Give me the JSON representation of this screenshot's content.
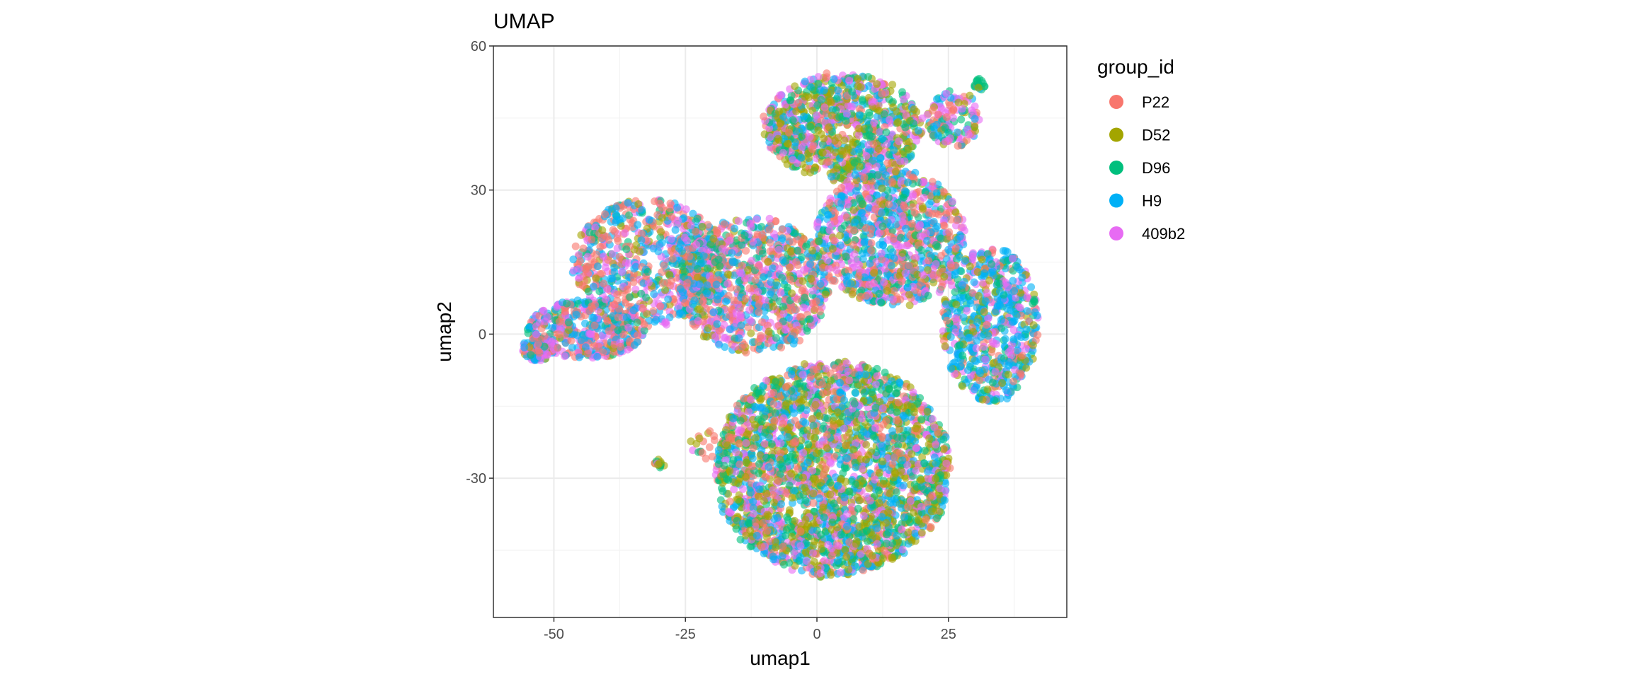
{
  "chart_data": {
    "type": "scatter",
    "title": "UMAP",
    "xlabel": "umap1",
    "ylabel": "umap2",
    "xlim": [
      -61.5,
      47.5
    ],
    "ylim": [
      -59,
      60
    ],
    "x_ticks": [
      -50,
      -25,
      0,
      25
    ],
    "x_tick_labels": [
      "-50",
      "-25",
      "0",
      "25"
    ],
    "y_ticks": [
      60,
      30,
      0,
      -30
    ],
    "y_tick_labels": [
      "60",
      "30",
      "0",
      "-30"
    ],
    "grid": true,
    "legend": {
      "title": "group_id",
      "position": "right",
      "entries": [
        {
          "name": "P22",
          "color": "#F8766D"
        },
        {
          "name": "D52",
          "color": "#A3A500"
        },
        {
          "name": "D96",
          "color": "#00BF7D"
        },
        {
          "name": "H9",
          "color": "#00B0F6"
        },
        {
          "name": "409b2",
          "color": "#E76BF3"
        }
      ]
    },
    "point_alpha": 0.6,
    "clusters": [
      {
        "center": [
          5,
          43
        ],
        "radius": [
          15,
          11
        ],
        "weights": [
          0.12,
          0.3,
          0.2,
          0.16,
          0.22
        ],
        "n": 900
      },
      {
        "center": [
          3,
          -28
        ],
        "radius": [
          22,
          22
        ],
        "weights": [
          0.14,
          0.27,
          0.21,
          0.2,
          0.18
        ],
        "n": 2600
      },
      {
        "center": [
          -32,
          15
        ],
        "radius": [
          14,
          13
        ],
        "weights": [
          0.3,
          0.08,
          0.1,
          0.28,
          0.24
        ],
        "n": 700
      },
      {
        "center": [
          -44,
          1
        ],
        "radius": [
          11,
          6
        ],
        "weights": [
          0.26,
          0.06,
          0.1,
          0.3,
          0.28
        ],
        "n": 420
      },
      {
        "center": [
          -12,
          10
        ],
        "radius": [
          14,
          14
        ],
        "weights": [
          0.32,
          0.1,
          0.12,
          0.26,
          0.2
        ],
        "n": 900
      },
      {
        "center": [
          14,
          20
        ],
        "radius": [
          14,
          14
        ],
        "weights": [
          0.24,
          0.12,
          0.13,
          0.26,
          0.25
        ],
        "n": 1000
      },
      {
        "center": [
          33,
          2
        ],
        "radius": [
          9,
          16
        ],
        "weights": [
          0.1,
          0.15,
          0.15,
          0.4,
          0.2
        ],
        "n": 650
      },
      {
        "center": [
          26,
          45
        ],
        "radius": [
          5,
          6
        ],
        "weights": [
          0.2,
          0.15,
          0.15,
          0.15,
          0.35
        ],
        "n": 130
      },
      {
        "center": [
          -53,
          -3
        ],
        "radius": [
          3,
          2.5
        ],
        "weights": [
          0.15,
          0.05,
          0.05,
          0.45,
          0.3
        ],
        "n": 120
      },
      {
        "center": [
          31,
          52
        ],
        "radius": [
          1.2,
          1.2
        ],
        "weights": [
          0.1,
          0.1,
          0.5,
          0.2,
          0.1
        ],
        "n": 20
      },
      {
        "center": [
          -30,
          -27
        ],
        "radius": [
          1.2,
          1
        ],
        "weights": [
          0.05,
          0.75,
          0.1,
          0.05,
          0.05
        ],
        "n": 15
      },
      {
        "center": [
          -20,
          -23
        ],
        "radius": [
          4,
          3
        ],
        "weights": [
          0.5,
          0.2,
          0.1,
          0.1,
          0.1
        ],
        "n": 25
      }
    ]
  }
}
